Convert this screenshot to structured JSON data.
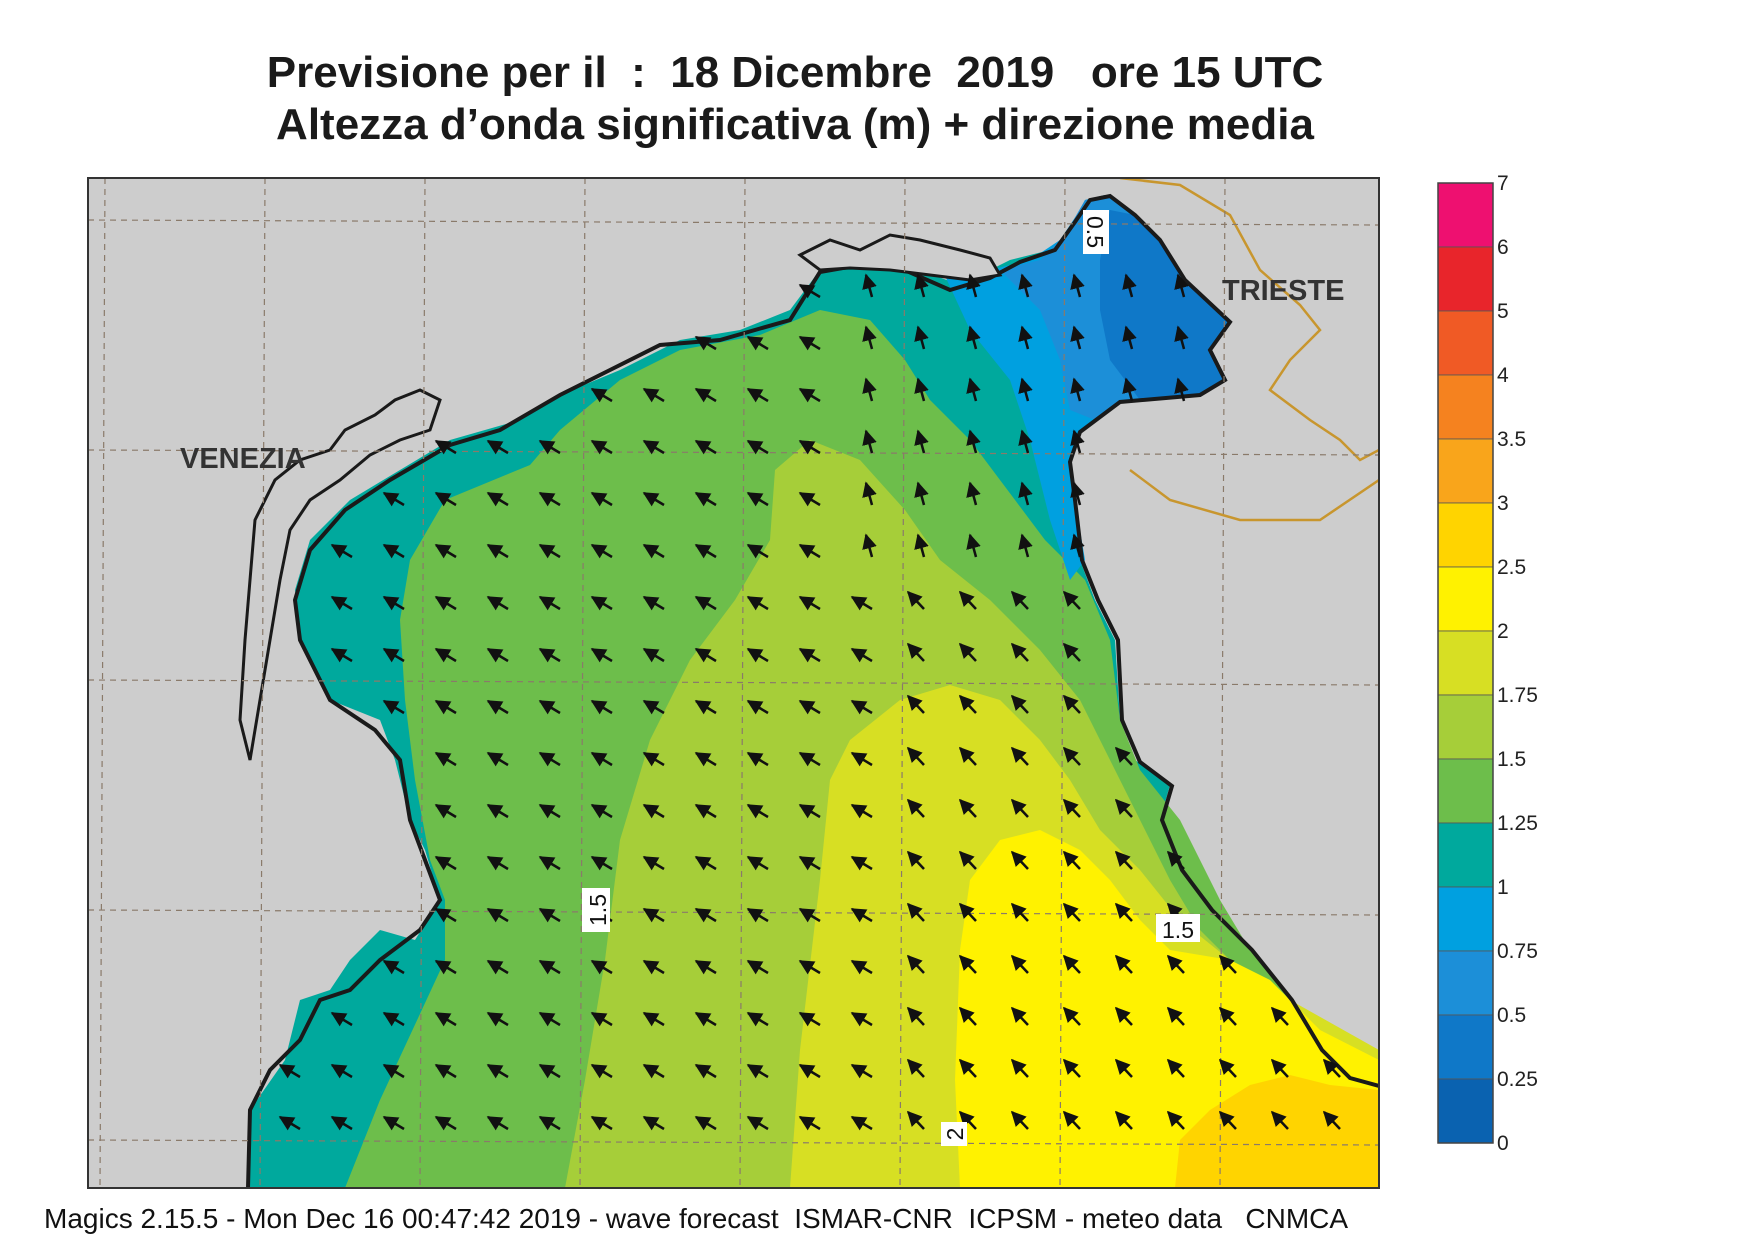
{
  "title_line1": "Previsione per il  :  18 Dicembre  2019   ore 15 UTC",
  "title_line2": "Altezza d’onda significativa (m) + direzione media",
  "cities": [
    "VENEZIA",
    "TRIESTE"
  ],
  "contour_labels": [
    "1.5",
    "1.5",
    "2",
    "0.5"
  ],
  "legend": [
    {
      "label": "7",
      "color": "#ee1070"
    },
    {
      "label": "6",
      "color": "#e8252b"
    },
    {
      "label": "5",
      "color": "#f05a25"
    },
    {
      "label": "4",
      "color": "#f5821f"
    },
    {
      "label": "3.5",
      "color": "#f9a51b"
    },
    {
      "label": "3",
      "color": "#ffd400"
    },
    {
      "label": "2.5",
      "color": "#fff200"
    },
    {
      "label": "2",
      "color": "#d7df23"
    },
    {
      "label": "1.75",
      "color": "#a6ce39"
    },
    {
      "label": "1.5",
      "color": "#6dbe4b"
    },
    {
      "label": "1.25",
      "color": "#00a99d"
    },
    {
      "label": "1",
      "color": "#00a0e0"
    },
    {
      "label": "0.75",
      "color": "#1c8fd8"
    },
    {
      "label": "0.5",
      "color": "#0f78c8"
    },
    {
      "label": "0.25",
      "color": "#0a62b0"
    },
    {
      "label": "0",
      "color": ""
    }
  ],
  "wave_direction": "north-west",
  "footer": "Magics 2.15.5 - Mon Dec 16 00:47:42 2019 - wave forecast  ISMAR-CNR  ICPSM - meteo data   CNMCA"
}
